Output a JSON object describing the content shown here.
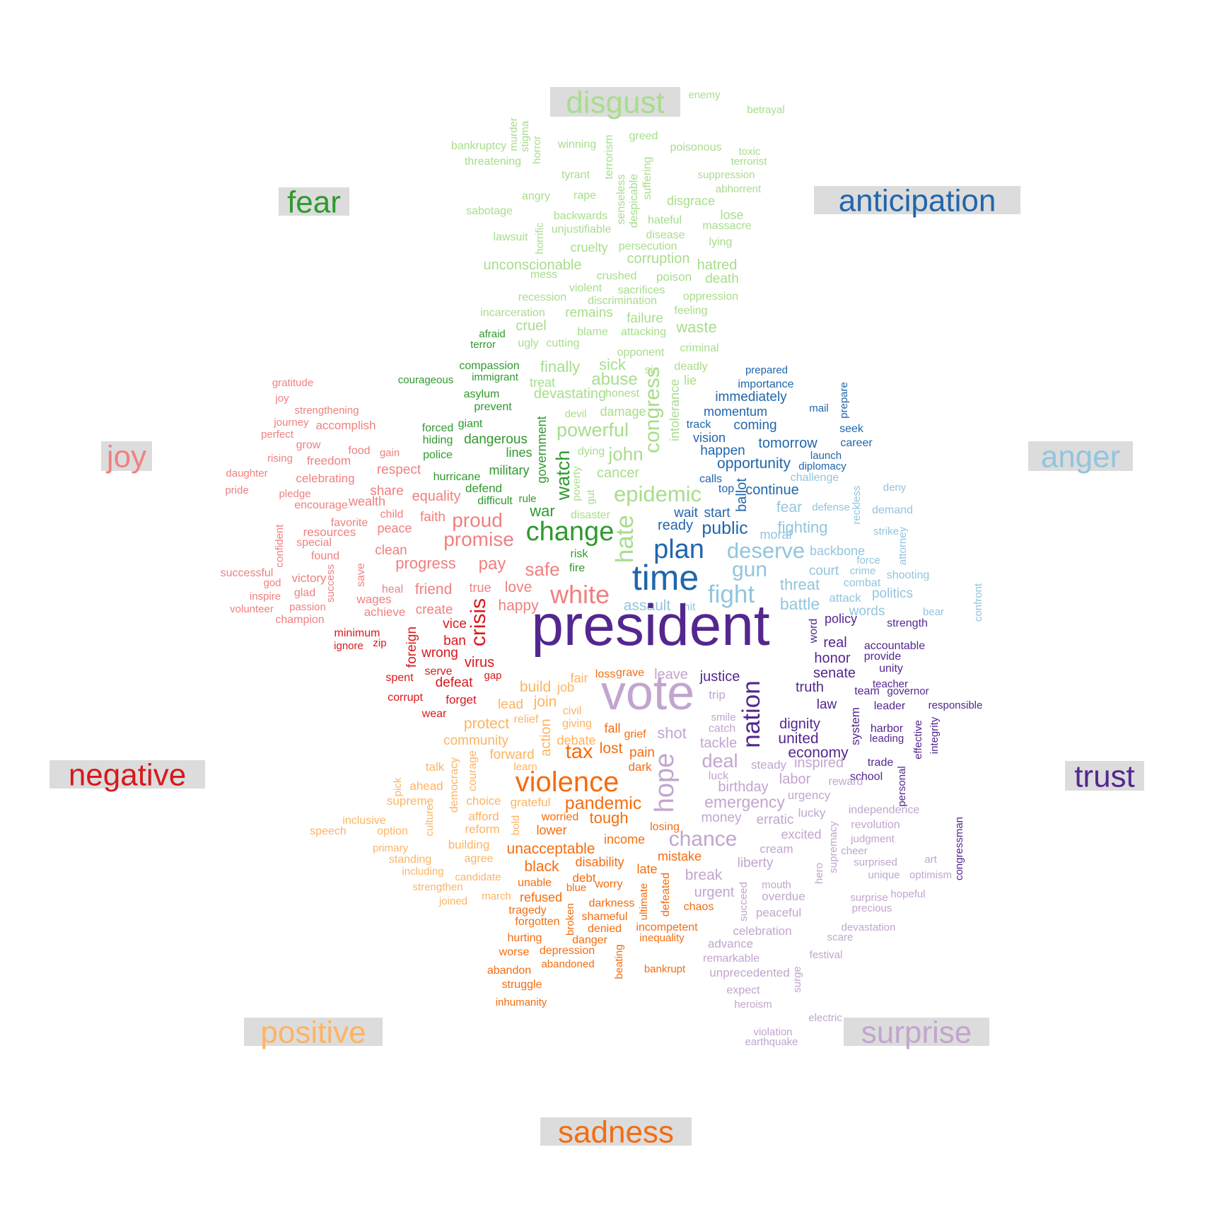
{
  "palette": {
    "disgust": "#a8dd8c",
    "fear": "#2e9a2e",
    "anticipation": "#2166ac",
    "anger": "#92c5de",
    "joy": "#f08080",
    "negative": "#d7191c",
    "positive": "#fdb462",
    "sadness": "#f46d0f",
    "surprise": "#c2a5cf",
    "trust": "#54278f",
    "label_background": "#dcdcdc"
  },
  "labels": [
    {
      "text": "disgust",
      "category": "disgust"
    },
    {
      "text": "fear",
      "category": "fear"
    },
    {
      "text": "anticipation",
      "category": "anticipation"
    },
    {
      "text": "joy",
      "category": "joy"
    },
    {
      "text": "anger",
      "category": "anger"
    },
    {
      "text": "negative",
      "category": "negative"
    },
    {
      "text": "trust",
      "category": "trust"
    },
    {
      "text": "positive",
      "category": "positive"
    },
    {
      "text": "surprise",
      "category": "surprise"
    },
    {
      "text": "sadness",
      "category": "sadness"
    }
  ],
  "words": {
    "disgust": [
      "enemy",
      "betrayal",
      "murder",
      "stigma",
      "horror",
      "bankruptcy",
      "winning",
      "greed",
      "poisonous",
      "toxic",
      "threatening",
      "terrorism",
      "terrorist",
      "tyrant",
      "suppression",
      "abhorrent",
      "angry",
      "rape",
      "senseless",
      "despicable",
      "suffering",
      "disgrace",
      "sabotage",
      "backwards",
      "hateful",
      "lose",
      "massacre",
      "lawsuit",
      "unjustifiable",
      "horrific",
      "disease",
      "lying",
      "cruelty",
      "persecution",
      "corruption",
      "hatred",
      "unconscionable",
      "mess",
      "crushed",
      "poison",
      "death",
      "violent",
      "sacrifices",
      "oppression",
      "recession",
      "discrimination",
      "incarceration",
      "remains",
      "feeling",
      "failure",
      "cruel",
      "blame",
      "attacking",
      "waste",
      "ugly",
      "cutting",
      "opponent",
      "criminal",
      "finally",
      "sick",
      "deadly",
      "sin",
      "treat",
      "abuse",
      "lie",
      "devastating",
      "honest",
      "congress",
      "intolerance",
      "devil",
      "damage",
      "powerful",
      "dying",
      "john",
      "poverty",
      "cancer",
      "gut",
      "epidemic",
      "disaster",
      "hate"
    ],
    "fear": [
      "fear",
      "afraid",
      "terror",
      "compassion",
      "courageous",
      "immigrant",
      "asylum",
      "prevent",
      "forced",
      "giant",
      "hiding",
      "dangerous",
      "police",
      "lines",
      "hurricane",
      "military",
      "government",
      "watch",
      "defend",
      "difficult",
      "rule",
      "war",
      "change",
      "risk",
      "fire"
    ],
    "anticipation": [
      "prepared",
      "importance",
      "prepare",
      "immediately",
      "mail",
      "momentum",
      "coming",
      "seek",
      "track",
      "vision",
      "tomorrow",
      "career",
      "happen",
      "launch",
      "opportunity",
      "diplomacy",
      "calls",
      "top",
      "continue",
      "ballot",
      "wait",
      "start",
      "ready",
      "public",
      "plan",
      "time"
    ],
    "anger": [
      "challenge",
      "deny",
      "reckless",
      "demand",
      "fear",
      "defense",
      "fighting",
      "strike",
      "moral",
      "backbone",
      "attorney",
      "deserve",
      "court",
      "crime",
      "force",
      "shooting",
      "gun",
      "threat",
      "combat",
      "confront",
      "fight",
      "politics",
      "assault",
      "hit",
      "battle",
      "attack",
      "words",
      "bear"
    ],
    "joy": [
      "gratitude",
      "joy",
      "strengthening",
      "journey",
      "accomplish",
      "perfect",
      "grow",
      "food",
      "gain",
      "rising",
      "freedom",
      "daughter",
      "celebrating",
      "respect",
      "pledge",
      "share",
      "pride",
      "encourage",
      "wealth",
      "equality",
      "child",
      "faith",
      "favorite",
      "proud",
      "resources",
      "peace",
      "confident",
      "special",
      "promise",
      "found",
      "clean",
      "successful",
      "victory",
      "save",
      "progress",
      "pay",
      "safe",
      "god",
      "glad",
      "heal",
      "friend",
      "true",
      "love",
      "inspire",
      "wages",
      "white",
      "volunteer",
      "passion",
      "success",
      "achieve",
      "create",
      "happy",
      "champion"
    ],
    "negative": [
      "minimum",
      "zip",
      "ignore",
      "crisis",
      "vice",
      "ban",
      "foreign",
      "wrong",
      "virus",
      "spent",
      "serve",
      "gap",
      "defeat",
      "corrupt",
      "forget",
      "wear"
    ],
    "trust": [
      "word",
      "policy",
      "strength",
      "real",
      "accountable",
      "provide",
      "honor",
      "unity",
      "senate",
      "teacher",
      "justice",
      "truth",
      "team",
      "governor",
      "nation",
      "law",
      "leader",
      "responsible",
      "system",
      "dignity",
      "harbor",
      "effective",
      "integrity",
      "leading",
      "united",
      "economy",
      "trade",
      "personal",
      "school",
      "congressman",
      "president"
    ],
    "positive": [
      "build",
      "fair",
      "job",
      "civil",
      "join",
      "lead",
      "relief",
      "giving",
      "protect",
      "action",
      "debate",
      "community",
      "courage",
      "forward",
      "democracy",
      "learn",
      "talk",
      "pick",
      "ahead",
      "supreme",
      "choice",
      "grateful",
      "inclusive",
      "culture",
      "afford",
      "speech",
      "option",
      "reform",
      "bold",
      "primary",
      "building",
      "standing",
      "agree",
      "including",
      "candidate",
      "strengthen",
      "march",
      "joined"
    ],
    "sadness": [
      "loss",
      "grave",
      "lost",
      "fall",
      "grief",
      "tax",
      "pain",
      "dark",
      "violence",
      "pandemic",
      "worried",
      "tough",
      "lower",
      "income",
      "losing",
      "unacceptable",
      "mistake",
      "black",
      "disability",
      "debt",
      "late",
      "unable",
      "worry",
      "blue",
      "refused",
      "defeated",
      "darkness",
      "ultimate",
      "chaos",
      "tragedy",
      "broken",
      "shameful",
      "forgotten",
      "denied",
      "incompetent",
      "inequality",
      "hurting",
      "danger",
      "worse",
      "depression",
      "beating",
      "abandon",
      "abandoned",
      "bankrupt",
      "struggle",
      "inhumanity"
    ],
    "surprise": [
      "leave",
      "trip",
      "smile",
      "catch",
      "shot",
      "tackle",
      "deal",
      "steady",
      "luck",
      "inspired",
      "birthday",
      "labor",
      "reward",
      "emergency",
      "urgency",
      "independence",
      "hope",
      "money",
      "lucky",
      "erratic",
      "revolution",
      "chance",
      "excited",
      "judgment",
      "supremacy",
      "cream",
      "cheer",
      "surprised",
      "art",
      "liberty",
      "unique",
      "optimism",
      "break",
      "hero",
      "mouth",
      "urgent",
      "overdue",
      "surprise",
      "hopeful",
      "succeed",
      "precious",
      "peaceful",
      "devastation",
      "celebration",
      "scare",
      "advance",
      "festival",
      "remarkable",
      "unprecedented",
      "surge",
      "expect",
      "heroism",
      "electric",
      "violation",
      "earthquake",
      "vote"
    ]
  }
}
